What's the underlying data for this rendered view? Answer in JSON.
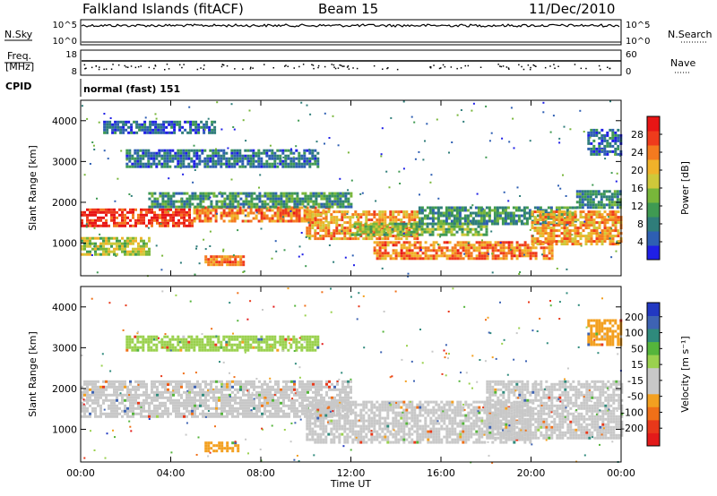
{
  "header": {
    "station": "Falkland Islands (fitACF)",
    "beam": "Beam 15",
    "date": "11/Dec/2010"
  },
  "params": {
    "nsky_label": "N.Sky",
    "nsky_ticks": [
      "10^5",
      "10^0"
    ],
    "nsearch_label": "N.Search",
    "nsearch_ticks": [
      "10^5",
      "10^0"
    ],
    "freq_label_1": "Freq.",
    "freq_label_2": "[MHz]",
    "freq_ticks": [
      "18",
      "8"
    ],
    "nave_label": "Nave",
    "nave_ticks": [
      "60",
      "0"
    ],
    "cpid_label": "CPID",
    "cpid_value": "normal (fast) 151"
  },
  "chart_data": [
    {
      "type": "heatmap",
      "panel": "power",
      "ylabel": "Slant Range [km]",
      "xlabel": "",
      "y_ticks": [
        "1000",
        "2000",
        "3000",
        "4000"
      ],
      "ylim": [
        200,
        4500
      ],
      "x_ticks": [
        "00:00",
        "04:00",
        "08:00",
        "12:00",
        "16:00",
        "20:00",
        "00:00"
      ],
      "xlim": [
        0,
        24
      ],
      "colorbar": {
        "label": "Power [dB]",
        "ticks": [
          "4",
          "8",
          "12",
          "16",
          "20",
          "24",
          "28"
        ],
        "range": [
          0,
          32
        ],
        "colors": [
          "#1f1fe6",
          "#2e5fb3",
          "#2f7d7a",
          "#3f9a52",
          "#78b63a",
          "#cfc83a",
          "#f0b22a",
          "#f47a1f",
          "#ef3b1c",
          "#e81515"
        ]
      },
      "bands": [
        {
          "t": [
            0,
            5
          ],
          "r": [
            1450,
            1850
          ],
          "level": 28
        },
        {
          "t": [
            5,
            11
          ],
          "r": [
            1550,
            1900
          ],
          "level": 24
        },
        {
          "t": [
            0,
            3
          ],
          "r": [
            700,
            1150
          ],
          "level": 16
        },
        {
          "t": [
            3,
            12
          ],
          "r": [
            1900,
            2250
          ],
          "level": 10
        },
        {
          "t": [
            2,
            10.5
          ],
          "r": [
            2900,
            3300
          ],
          "level": 7
        },
        {
          "t": [
            1,
            6
          ],
          "r": [
            3700,
            4000
          ],
          "level": 6
        },
        {
          "t": [
            10,
            15
          ],
          "r": [
            1100,
            1800
          ],
          "level": 22
        },
        {
          "t": [
            12,
            18
          ],
          "r": [
            1200,
            1500
          ],
          "level": 14
        },
        {
          "t": [
            13,
            21
          ],
          "r": [
            600,
            1050
          ],
          "level": 24
        },
        {
          "t": [
            15,
            22
          ],
          "r": [
            1500,
            1900
          ],
          "level": 10
        },
        {
          "t": [
            20,
            24
          ],
          "r": [
            1000,
            1800
          ],
          "level": 22
        },
        {
          "t": [
            22,
            24
          ],
          "r": [
            1900,
            2300
          ],
          "level": 9
        },
        {
          "t": [
            22.5,
            24
          ],
          "r": [
            3200,
            3800
          ],
          "level": 6
        },
        {
          "t": [
            5.5,
            7.2
          ],
          "r": [
            500,
            700
          ],
          "level": 24
        }
      ]
    },
    {
      "type": "heatmap",
      "panel": "velocity",
      "ylabel": "Slant Range [km]",
      "xlabel": "Time UT",
      "y_ticks": [
        "1000",
        "2000",
        "3000",
        "4000"
      ],
      "ylim": [
        200,
        4500
      ],
      "x_ticks": [
        "00:00",
        "04:00",
        "08:00",
        "12:00",
        "16:00",
        "20:00",
        "00:00"
      ],
      "xlim": [
        0,
        24
      ],
      "colorbar": {
        "label": "Velocity [m s⁻¹]",
        "ticks": [
          "200",
          "100",
          "50",
          "15",
          "-15",
          "-50",
          "-100",
          "-200"
        ],
        "colors": [
          "#2238c2",
          "#3e63b3",
          "#2f8a7c",
          "#55b53b",
          "#9ad14e",
          "#c8c8c8",
          "#c8c8c8",
          "#f3a020",
          "#f07018",
          "#e8381a",
          "#e31a1a"
        ]
      },
      "bands": [
        {
          "t": [
            0,
            12
          ],
          "r": [
            1300,
            2200
          ],
          "level": 0
        },
        {
          "t": [
            10,
            20
          ],
          "r": [
            700,
            1700
          ],
          "level": 0
        },
        {
          "t": [
            18,
            24
          ],
          "r": [
            800,
            2200
          ],
          "level": 0
        },
        {
          "t": [
            2,
            10.5
          ],
          "r": [
            2950,
            3300
          ],
          "level": 40
        },
        {
          "t": [
            5.5,
            7
          ],
          "r": [
            450,
            700
          ],
          "level": -60
        },
        {
          "t": [
            22.5,
            24
          ],
          "r": [
            3100,
            3700
          ],
          "level": -60
        }
      ]
    }
  ]
}
